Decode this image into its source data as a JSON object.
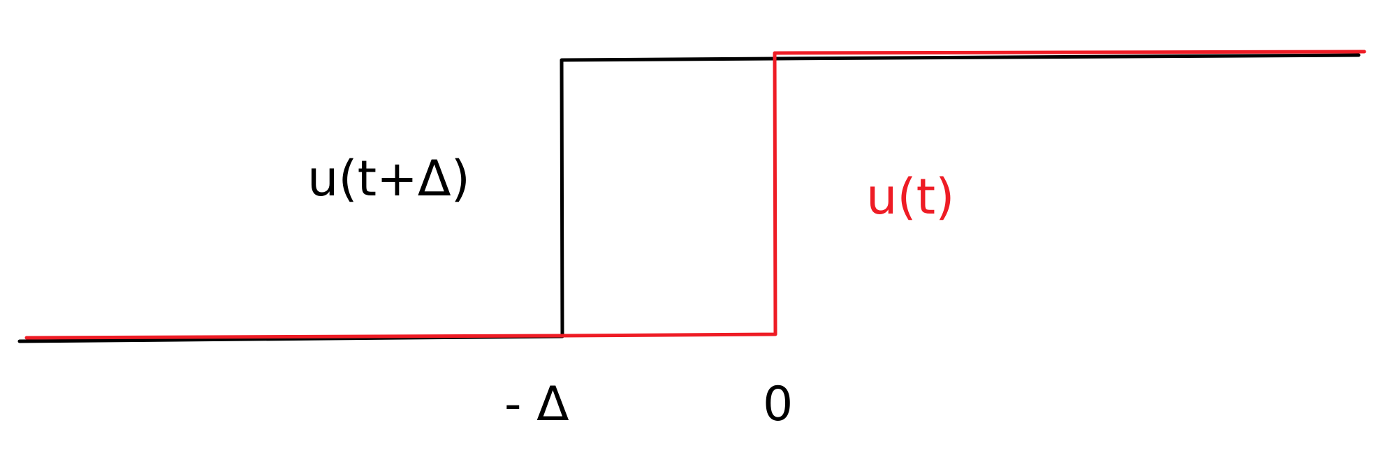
{
  "colors": {
    "background": "#ffffff",
    "shifted_step": "#000000",
    "unit_step": "#ee1c25"
  },
  "labels": {
    "shifted_step": "u(t+Δ)",
    "unit_step": "u(t)"
  },
  "ticks": {
    "minus_delta": "- Δ",
    "zero": "0"
  }
}
